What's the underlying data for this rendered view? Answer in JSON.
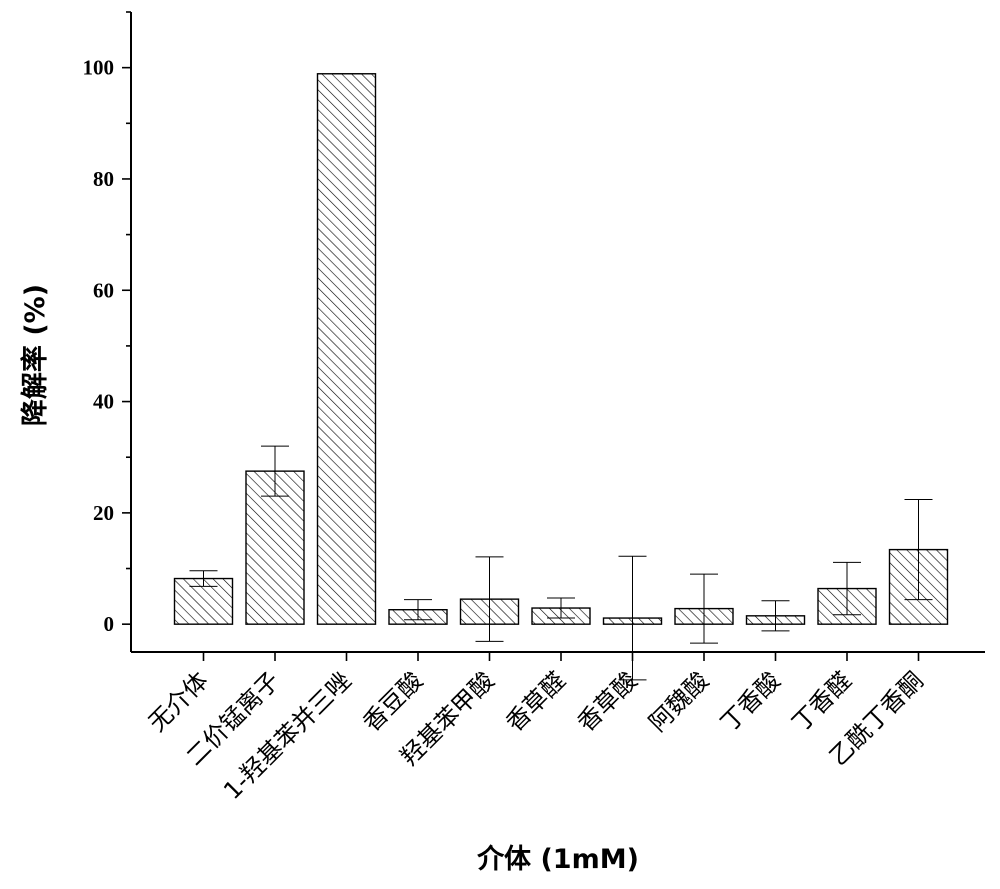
{
  "chart_data": {
    "type": "bar",
    "title": "",
    "xlabel": "介体 (1mM)",
    "ylabel": "降解率 (%)",
    "ylim": [
      -5,
      110
    ],
    "yticks": [
      0,
      20,
      40,
      60,
      80,
      100
    ],
    "categories": [
      "无介体",
      "二价锰离子",
      "1-羟基苯并三唑",
      "香豆酸",
      "羟基苯甲酸",
      "香草醛",
      "香草酸",
      "阿魏酸",
      "丁香酸",
      "丁香醛",
      "乙酰丁香酮"
    ],
    "values": [
      8.2,
      27.5,
      98.9,
      2.6,
      4.5,
      2.9,
      1.1,
      2.8,
      1.5,
      6.4,
      13.4
    ],
    "errors": [
      1.4,
      4.5,
      0.0,
      1.8,
      7.6,
      1.8,
      11.1,
      6.2,
      2.7,
      4.7,
      9.0
    ],
    "bar_pattern": "diagonal-hatch",
    "grid": false,
    "legend": "none"
  }
}
